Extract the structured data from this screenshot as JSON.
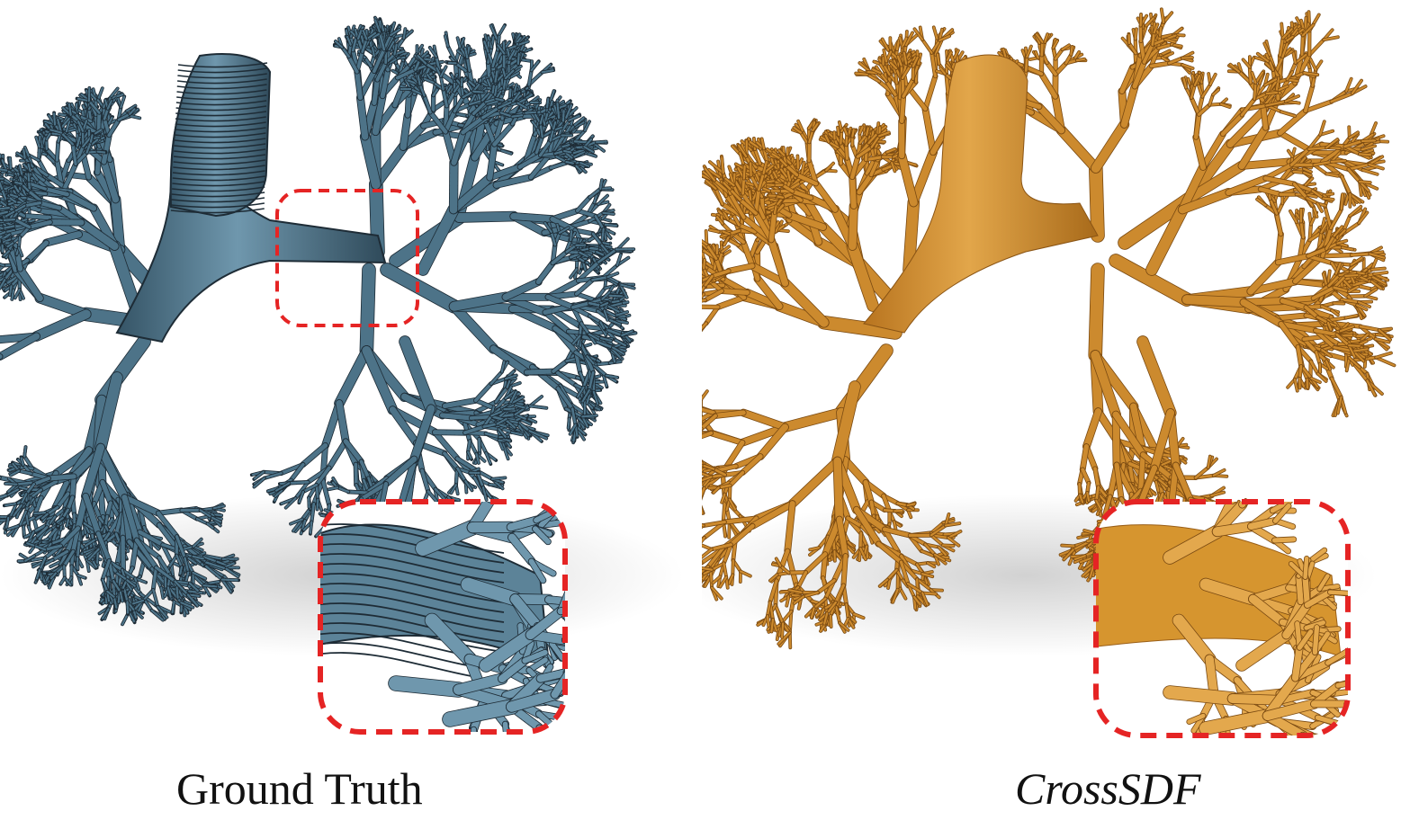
{
  "figure": {
    "panels": [
      {
        "caption": "Ground Truth",
        "color": "#4d7388",
        "edge": "#1e2c36"
      },
      {
        "caption": "CrossSDF",
        "color": "#cc8a2e",
        "edge": "#7a4a12"
      }
    ],
    "highlight_color": "#e52424"
  }
}
